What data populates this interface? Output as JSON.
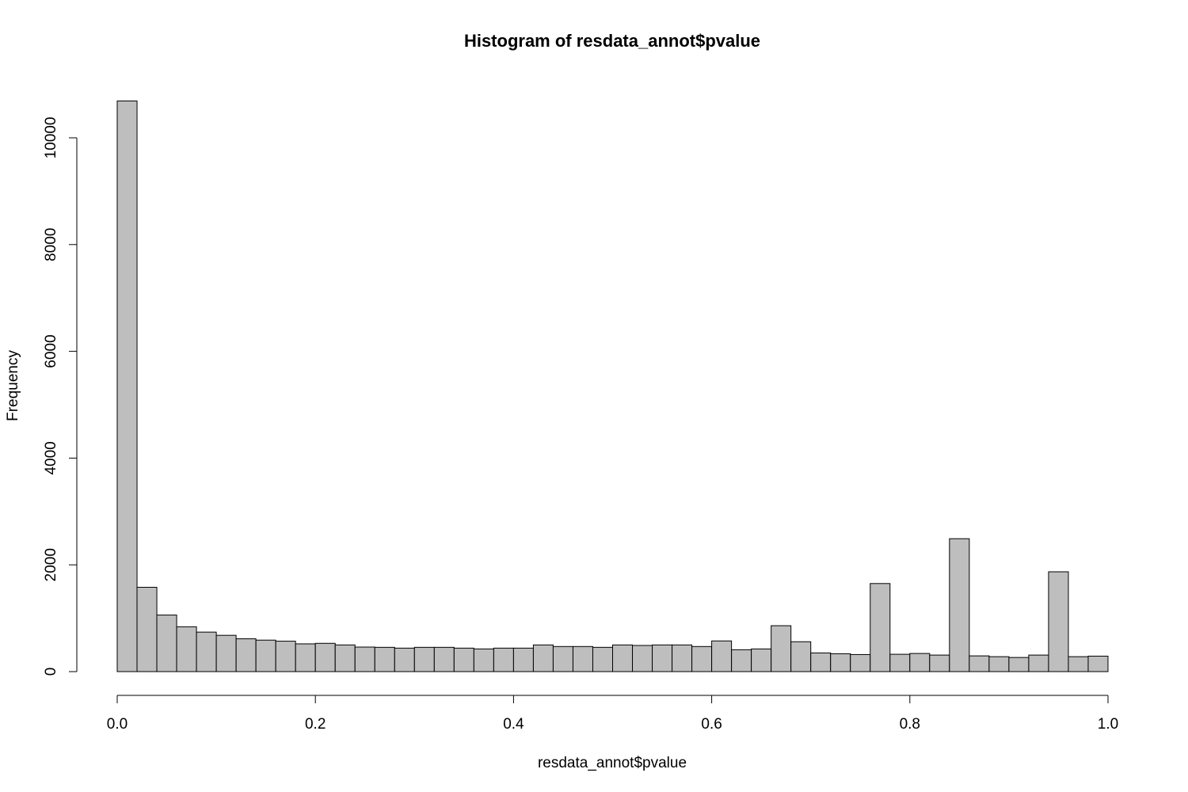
{
  "chart_data": {
    "type": "bar",
    "title": "Histogram of resdata_annot$pvalue",
    "xlabel": "resdata_annot$pvalue",
    "ylabel": "Frequency",
    "xlim": [
      0,
      1
    ],
    "ylim": [
      0,
      10800
    ],
    "bin_width": 0.02,
    "x_ticks": [
      {
        "value": 0.0,
        "label": "0.0"
      },
      {
        "value": 0.2,
        "label": "0.2"
      },
      {
        "value": 0.4,
        "label": "0.4"
      },
      {
        "value": 0.6,
        "label": "0.6"
      },
      {
        "value": 0.8,
        "label": "0.8"
      },
      {
        "value": 1.0,
        "label": "1.0"
      }
    ],
    "y_ticks": [
      {
        "value": 0,
        "label": "0"
      },
      {
        "value": 2000,
        "label": "2000"
      },
      {
        "value": 4000,
        "label": "4000"
      },
      {
        "value": 6000,
        "label": "6000"
      },
      {
        "value": 8000,
        "label": "8000"
      },
      {
        "value": 10000,
        "label": "10000"
      }
    ],
    "values": [
      10690,
      1580,
      1060,
      840,
      740,
      680,
      615,
      590,
      570,
      520,
      530,
      500,
      460,
      455,
      440,
      455,
      455,
      440,
      425,
      440,
      440,
      500,
      470,
      470,
      455,
      500,
      490,
      500,
      500,
      470,
      575,
      410,
      425,
      860,
      560,
      350,
      335,
      320,
      1650,
      325,
      340,
      310,
      2490,
      295,
      280,
      265,
      310,
      1870,
      280,
      290
    ],
    "bar_fill": "#bebebe",
    "bar_stroke": "#000000",
    "grid": false
  }
}
